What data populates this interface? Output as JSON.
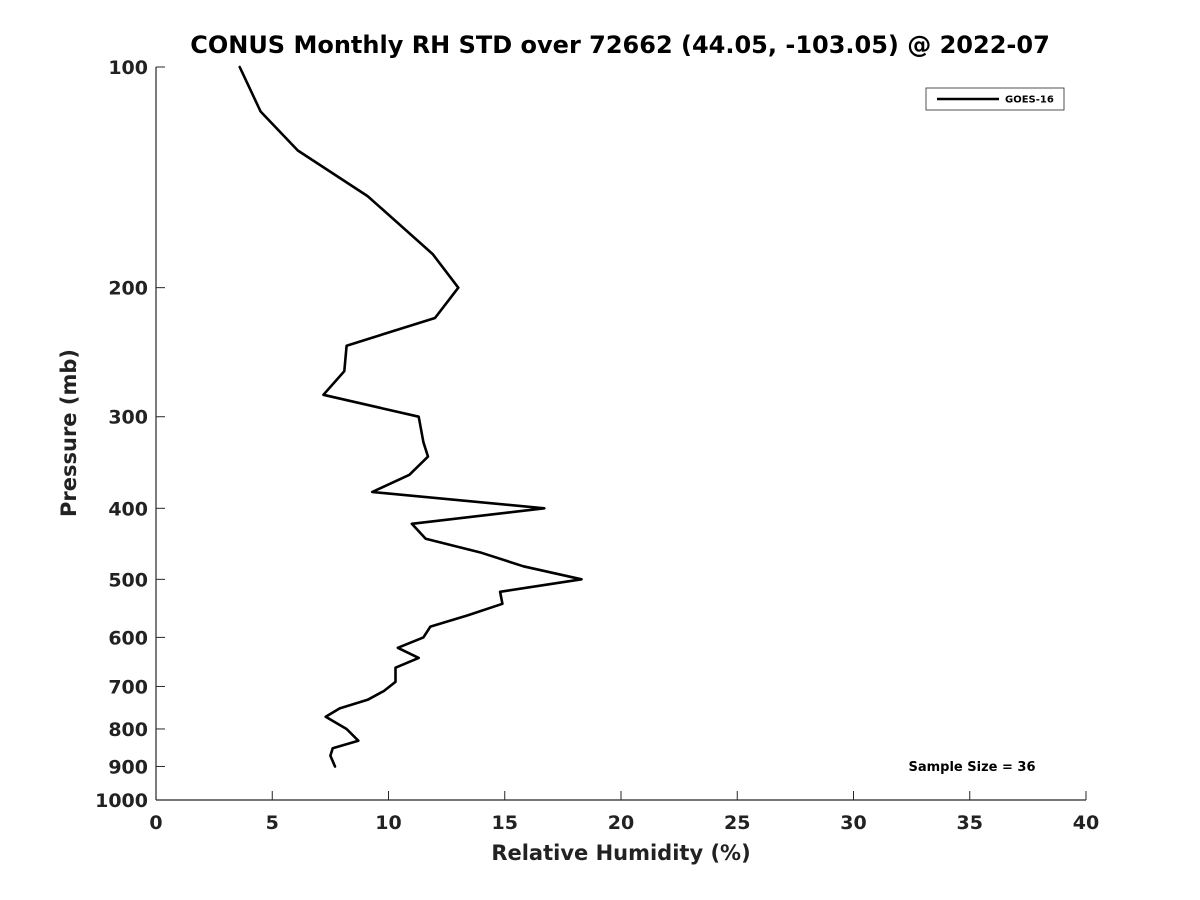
{
  "chart_data": {
    "type": "line",
    "title": "CONUS Monthly RH STD over 72662 (44.05, -103.05) @ 2022-07",
    "xlabel": "Relative Humidity (%)",
    "ylabel": "Pressure (mb)",
    "xlim": [
      0,
      40
    ],
    "ylim": [
      100,
      1000
    ],
    "yscale": "log",
    "y_reversed": true,
    "x_ticks": [
      0,
      5,
      10,
      15,
      20,
      25,
      30,
      35,
      40
    ],
    "y_ticks": [
      100,
      200,
      300,
      400,
      500,
      600,
      700,
      800,
      900,
      1000
    ],
    "grid": false,
    "legend_position": "top-right",
    "annotation": "Sample Size = 36",
    "series": [
      {
        "name": "GOES-16",
        "color": "#000000",
        "points": [
          {
            "x": 3.6,
            "y": 100
          },
          {
            "x": 4.5,
            "y": 115
          },
          {
            "x": 6.1,
            "y": 130
          },
          {
            "x": 9.1,
            "y": 150
          },
          {
            "x": 11.9,
            "y": 180
          },
          {
            "x": 13.0,
            "y": 200
          },
          {
            "x": 12.0,
            "y": 220
          },
          {
            "x": 8.2,
            "y": 240
          },
          {
            "x": 8.1,
            "y": 260
          },
          {
            "x": 7.2,
            "y": 280
          },
          {
            "x": 11.3,
            "y": 300
          },
          {
            "x": 11.5,
            "y": 325
          },
          {
            "x": 11.7,
            "y": 340
          },
          {
            "x": 10.9,
            "y": 360
          },
          {
            "x": 9.3,
            "y": 380
          },
          {
            "x": 16.7,
            "y": 400
          },
          {
            "x": 11.0,
            "y": 420
          },
          {
            "x": 11.6,
            "y": 440
          },
          {
            "x": 14.0,
            "y": 460
          },
          {
            "x": 15.8,
            "y": 480
          },
          {
            "x": 18.3,
            "y": 500
          },
          {
            "x": 14.8,
            "y": 520
          },
          {
            "x": 14.9,
            "y": 540
          },
          {
            "x": 13.4,
            "y": 560
          },
          {
            "x": 11.8,
            "y": 580
          },
          {
            "x": 11.5,
            "y": 600
          },
          {
            "x": 10.4,
            "y": 620
          },
          {
            "x": 11.3,
            "y": 640
          },
          {
            "x": 10.3,
            "y": 660
          },
          {
            "x": 10.3,
            "y": 690
          },
          {
            "x": 9.8,
            "y": 710
          },
          {
            "x": 9.1,
            "y": 730
          },
          {
            "x": 7.9,
            "y": 750
          },
          {
            "x": 7.3,
            "y": 770
          },
          {
            "x": 8.2,
            "y": 800
          },
          {
            "x": 8.7,
            "y": 830
          },
          {
            "x": 7.6,
            "y": 850
          },
          {
            "x": 7.5,
            "y": 870
          },
          {
            "x": 7.7,
            "y": 900
          }
        ]
      }
    ]
  }
}
